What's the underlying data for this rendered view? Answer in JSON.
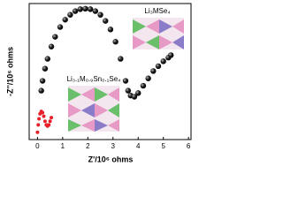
{
  "chart_data": {
    "type": "scatter",
    "x_label": "Z'/10⁶ ohms",
    "y_label": "-Z''/10⁶ ohms",
    "xlim": [
      -0.33,
      6.1
    ],
    "ylim": [
      0,
      5.56
    ],
    "xticks": [
      0,
      1,
      2,
      3,
      4,
      5,
      6
    ],
    "annotations": [
      "Li₃MSe₄",
      "Li₃.₁M₀.₉Sn₀.₁Se₄"
    ],
    "series": [
      {
        "color": "#111111",
        "x": [
          0.15,
          0.2,
          0.3,
          0.4,
          0.55,
          0.7,
          0.9,
          1.1,
          1.3,
          1.5,
          1.7,
          1.9,
          2.1,
          2.3,
          2.5,
          2.7,
          2.9,
          3.1,
          3.3,
          3.5,
          3.6,
          3.7,
          3.85,
          4.0,
          4.2,
          4.4,
          4.6,
          4.8,
          5.0,
          5.2,
          5.3
        ],
        "values": [
          2.0,
          2.4,
          2.9,
          3.3,
          3.8,
          4.2,
          4.6,
          4.9,
          5.1,
          5.25,
          5.33,
          5.35,
          5.33,
          5.25,
          5.1,
          4.85,
          4.5,
          4.0,
          3.3,
          2.4,
          2.0,
          1.8,
          1.75,
          1.9,
          2.2,
          2.5,
          2.8,
          3.0,
          3.2,
          3.35,
          3.45
        ]
      },
      {
        "color": "#e8202a",
        "x": [
          0.0,
          0.03,
          0.06,
          0.1,
          0.15,
          0.2,
          0.25,
          0.3,
          0.35,
          0.4,
          0.45,
          0.5,
          0.55
        ],
        "values": [
          0.3,
          0.6,
          0.85,
          1.05,
          1.15,
          1.1,
          0.95,
          0.75,
          0.6,
          0.55,
          0.6,
          0.75,
          0.9
        ]
      }
    ]
  }
}
